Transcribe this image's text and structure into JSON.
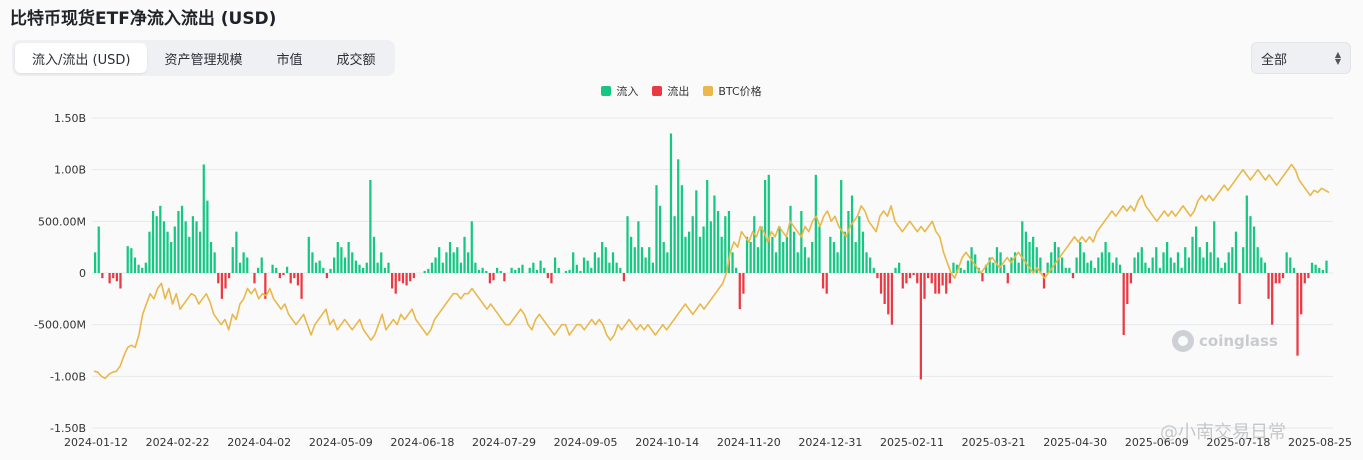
{
  "page": {
    "title": "比特币现货ETF净流入流出 (USD)",
    "tabs": [
      {
        "label": "流入/流出 (USD)",
        "active": true
      },
      {
        "label": "资产管理规模",
        "active": false
      },
      {
        "label": "市值",
        "active": false
      },
      {
        "label": "成交额",
        "active": false
      }
    ],
    "filter": {
      "selected": "全部"
    },
    "watermark": "coinglass",
    "corner_watermark": "@小南交易日常",
    "colors": {
      "inflow": "#16c784",
      "outflow": "#ea3943",
      "btc": "#e8b84b",
      "grid": "#e6e8eb"
    }
  },
  "chart_data": {
    "type": "bar",
    "title": "比特币现货ETF净流入流出 (USD)",
    "legend": {
      "placement": "top-center",
      "entries": [
        "流入",
        "流出",
        "BTC价格"
      ]
    },
    "y_axis": {
      "ticks": [
        1.5,
        1.0,
        0.5,
        0,
        -0.5,
        -1.0,
        -1.5
      ],
      "tick_labels": [
        "1.50B",
        "1.00B",
        "500.00M",
        "0",
        "-500.00M",
        "-1.00B",
        "-1.50B"
      ],
      "ylim": [
        -1.5,
        1.5
      ],
      "unit": "B USD"
    },
    "x_axis": {
      "tick_labels": [
        "2024-01-12",
        "2024-02-22",
        "2024-04-02",
        "2024-05-09",
        "2024-06-18",
        "2024-07-29",
        "2024-09-05",
        "2024-10-14",
        "2024-11-20",
        "2024-12-31",
        "2025-02-11",
        "2025-03-21",
        "2025-04-30",
        "2025-06-09",
        "2025-07-18",
        "2025-08-25"
      ]
    },
    "grid": true,
    "series": [
      {
        "name": "流入/流出",
        "kind": "bar",
        "values": [
          0.2,
          0.45,
          -0.05,
          0.0,
          -0.1,
          -0.05,
          -0.08,
          -0.15,
          0.0,
          0.26,
          0.24,
          0.15,
          0.08,
          0.05,
          0.1,
          0.4,
          0.6,
          0.55,
          0.65,
          0.5,
          0.4,
          0.3,
          0.45,
          0.6,
          0.65,
          0.5,
          0.35,
          0.55,
          0.5,
          0.4,
          1.05,
          0.7,
          0.3,
          0.2,
          -0.1,
          -0.25,
          -0.15,
          -0.05,
          0.25,
          0.4,
          0.1,
          0.2,
          0.15,
          0.0,
          -0.1,
          0.05,
          0.15,
          -0.25,
          0.0,
          0.08,
          0.05,
          -0.05,
          -0.02,
          0.06,
          -0.1,
          -0.05,
          -0.12,
          -0.25,
          0.0,
          0.35,
          0.2,
          0.1,
          0.12,
          0.05,
          -0.05,
          0.04,
          0.15,
          0.3,
          0.25,
          0.15,
          0.3,
          0.2,
          0.12,
          0.08,
          0.05,
          0.1,
          0.9,
          0.35,
          0.1,
          0.2,
          0.05,
          0.1,
          -0.15,
          -0.2,
          -0.08,
          -0.1,
          -0.12,
          -0.08,
          -0.05,
          0.0,
          0.0,
          0.02,
          0.04,
          0.1,
          0.15,
          0.25,
          0.1,
          0.2,
          0.3,
          0.2,
          0.25,
          0.1,
          0.35,
          0.2,
          0.5,
          0.1,
          0.03,
          0.05,
          0.02,
          -0.1,
          -0.07,
          0.05,
          0.02,
          -0.08,
          0.0,
          0.05,
          0.03,
          0.05,
          0.08,
          0.0,
          0.05,
          0.1,
          0.03,
          0.12,
          0.05,
          -0.05,
          -0.1,
          0.15,
          0.05,
          0.0,
          0.02,
          0.03,
          0.2,
          0.08,
          0.02,
          0.15,
          0.12,
          0.05,
          0.2,
          0.15,
          0.3,
          0.25,
          0.1,
          0.2,
          0.1,
          0.05,
          -0.08,
          0.55,
          0.35,
          0.25,
          0.5,
          0.25,
          0.15,
          0.25,
          0.1,
          0.85,
          0.65,
          0.3,
          0.2,
          1.35,
          0.55,
          1.1,
          0.85,
          0.35,
          0.4,
          0.55,
          0.8,
          0.35,
          0.45,
          0.9,
          0.5,
          0.75,
          0.6,
          0.35,
          0.55,
          0.6,
          0.2,
          0.05,
          -0.35,
          -0.2,
          0.35,
          0.3,
          0.55,
          0.25,
          0.45,
          0.9,
          0.95,
          0.35,
          0.2,
          0.45,
          0.3,
          0.35,
          0.65,
          0.4,
          0.2,
          0.6,
          0.25,
          0.15,
          0.3,
          0.95,
          0.45,
          -0.15,
          -0.2,
          0.35,
          0.3,
          0.2,
          0.9,
          0.4,
          0.6,
          0.75,
          0.3,
          0.55,
          0.4,
          0.2,
          0.15,
          0.05,
          -0.05,
          -0.2,
          -0.3,
          -0.4,
          -0.5,
          0.05,
          0.1,
          -0.15,
          -0.1,
          -0.05,
          -0.02,
          -0.1,
          -1.03,
          -0.25,
          -0.05,
          -0.1,
          -0.2,
          -0.2,
          -0.12,
          -0.2,
          -0.1,
          0.1,
          0.08,
          0.05,
          0.03,
          0.12,
          0.25,
          0.18,
          0.05,
          -0.08,
          0.08,
          0.15,
          0.1,
          0.25,
          0.2,
          0.08,
          -0.1,
          0.15,
          0.2,
          0.1,
          0.5,
          0.4,
          0.3,
          0.35,
          0.25,
          0.15,
          -0.15,
          0.1,
          0.2,
          0.3,
          0.25,
          0.15,
          0.05,
          0.05,
          -0.05,
          0.15,
          0.3,
          0.2,
          0.1,
          0.12,
          0.05,
          0.15,
          0.2,
          0.3,
          0.2,
          0.1,
          0.15,
          0.08,
          -0.6,
          -0.3,
          -0.1,
          0.15,
          0.2,
          0.25,
          0.1,
          0.05,
          0.15,
          0.25,
          0.05,
          0.2,
          0.3,
          0.15,
          0.1,
          0.2,
          0.05,
          0.25,
          0.15,
          0.35,
          0.45,
          0.25,
          0.15,
          0.3,
          0.2,
          0.5,
          0.15,
          0.05,
          0.1,
          0.2,
          0.25,
          0.4,
          -0.3,
          0.25,
          0.75,
          0.55,
          0.45,
          0.25,
          0.15,
          0.1,
          -0.25,
          -0.5,
          -0.1,
          -0.1,
          -0.05,
          0.2,
          0.15,
          0.05,
          -0.8,
          -0.4,
          -0.1,
          -0.05,
          0.1,
          0.08,
          0.05,
          0.03,
          0.12
        ]
      },
      {
        "name": "BTC价格",
        "kind": "line",
        "values": [
          -0.95,
          -0.96,
          -1.0,
          -1.02,
          -0.98,
          -0.96,
          -0.95,
          -0.9,
          -0.8,
          -0.72,
          -0.7,
          -0.72,
          -0.6,
          -0.4,
          -0.3,
          -0.2,
          -0.25,
          -0.15,
          -0.1,
          -0.25,
          -0.15,
          -0.3,
          -0.2,
          -0.35,
          -0.3,
          -0.25,
          -0.2,
          -0.22,
          -0.3,
          -0.25,
          -0.2,
          -0.28,
          -0.4,
          -0.45,
          -0.5,
          -0.45,
          -0.55,
          -0.4,
          -0.45,
          -0.3,
          -0.25,
          -0.15,
          -0.2,
          -0.15,
          -0.25,
          -0.2,
          -0.22,
          -0.15,
          -0.25,
          -0.3,
          -0.35,
          -0.3,
          -0.4,
          -0.45,
          -0.5,
          -0.45,
          -0.4,
          -0.5,
          -0.6,
          -0.5,
          -0.45,
          -0.4,
          -0.35,
          -0.5,
          -0.45,
          -0.55,
          -0.5,
          -0.45,
          -0.5,
          -0.55,
          -0.5,
          -0.45,
          -0.55,
          -0.6,
          -0.65,
          -0.6,
          -0.5,
          -0.4,
          -0.55,
          -0.5,
          -0.45,
          -0.5,
          -0.4,
          -0.45,
          -0.4,
          -0.35,
          -0.45,
          -0.5,
          -0.55,
          -0.6,
          -0.55,
          -0.45,
          -0.4,
          -0.35,
          -0.3,
          -0.25,
          -0.2,
          -0.2,
          -0.25,
          -0.2,
          -0.2,
          -0.15,
          -0.2,
          -0.25,
          -0.3,
          -0.35,
          -0.3,
          -0.35,
          -0.4,
          -0.45,
          -0.5,
          -0.5,
          -0.45,
          -0.4,
          -0.35,
          -0.4,
          -0.5,
          -0.55,
          -0.45,
          -0.4,
          -0.45,
          -0.5,
          -0.55,
          -0.6,
          -0.55,
          -0.5,
          -0.5,
          -0.6,
          -0.55,
          -0.5,
          -0.5,
          -0.55,
          -0.5,
          -0.45,
          -0.5,
          -0.45,
          -0.5,
          -0.6,
          -0.65,
          -0.6,
          -0.5,
          -0.55,
          -0.5,
          -0.45,
          -0.5,
          -0.55,
          -0.5,
          -0.55,
          -0.5,
          -0.55,
          -0.6,
          -0.55,
          -0.5,
          -0.55,
          -0.5,
          -0.45,
          -0.4,
          -0.35,
          -0.3,
          -0.35,
          -0.4,
          -0.35,
          -0.3,
          -0.35,
          -0.3,
          -0.25,
          -0.2,
          -0.15,
          -0.1,
          0.0,
          0.2,
          0.3,
          0.25,
          0.4,
          0.35,
          0.3,
          0.4,
          0.35,
          0.45,
          0.4,
          0.3,
          0.4,
          0.35,
          0.45,
          0.4,
          0.35,
          0.5,
          0.45,
          0.4,
          0.35,
          0.45,
          0.4,
          0.5,
          0.55,
          0.45,
          0.55,
          0.6,
          0.5,
          0.55,
          0.45,
          0.4,
          0.35,
          0.45,
          0.5,
          0.55,
          0.65,
          0.6,
          0.5,
          0.45,
          0.4,
          0.55,
          0.6,
          0.55,
          0.65,
          0.5,
          0.45,
          0.4,
          0.45,
          0.5,
          0.45,
          0.4,
          0.45,
          0.4,
          0.45,
          0.5,
          0.4,
          0.35,
          0.2,
          0.1,
          0.0,
          -0.05,
          0.05,
          0.15,
          0.2,
          0.15,
          0.1,
          0.05,
          0.0,
          0.05,
          0.1,
          0.15,
          0.1,
          0.05,
          0.1,
          0.15,
          0.1,
          0.15,
          0.2,
          0.15,
          0.1,
          0.05,
          0.0,
          0.05,
          0.0,
          -0.05,
          0.0,
          0.05,
          0.1,
          0.15,
          0.2,
          0.25,
          0.3,
          0.35,
          0.3,
          0.35,
          0.3,
          0.35,
          0.3,
          0.4,
          0.45,
          0.5,
          0.55,
          0.6,
          0.55,
          0.6,
          0.65,
          0.6,
          0.65,
          0.6,
          0.7,
          0.75,
          0.65,
          0.6,
          0.55,
          0.5,
          0.55,
          0.6,
          0.55,
          0.6,
          0.55,
          0.6,
          0.65,
          0.6,
          0.55,
          0.6,
          0.7,
          0.75,
          0.7,
          0.75,
          0.7,
          0.75,
          0.8,
          0.85,
          0.8,
          0.85,
          0.9,
          0.95,
          1.0,
          0.95,
          0.9,
          0.95,
          1.0,
          0.95,
          0.9,
          0.95,
          0.9,
          0.85,
          0.9,
          0.95,
          1.0,
          1.05,
          1.0,
          0.9,
          0.85,
          0.8,
          0.75,
          0.8,
          0.78,
          0.82,
          0.8,
          0.78
        ]
      }
    ]
  }
}
